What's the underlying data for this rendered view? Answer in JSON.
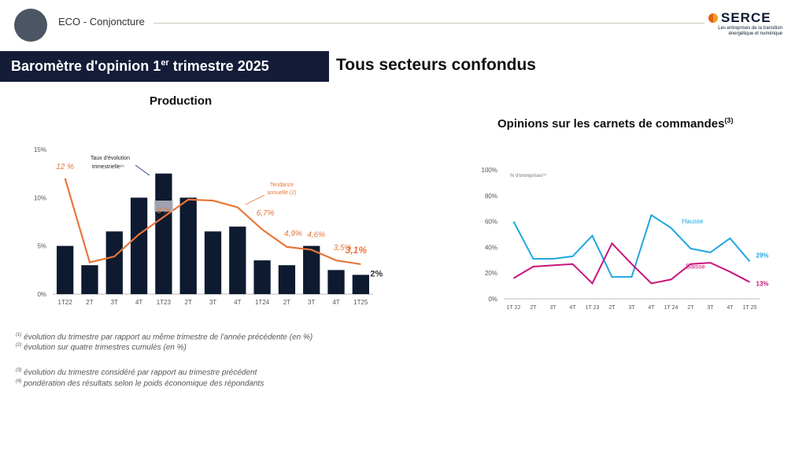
{
  "header": {
    "section": "ECO - Conjoncture",
    "brand": {
      "name": "SERCE",
      "tagline_1": "Les entreprises de la transition",
      "tagline_2": "énergétique et numérique"
    }
  },
  "banner": {
    "title_prefix": "Baromètre d'opinion 1",
    "title_sup": "er",
    "title_suffix": " trimestre 2025"
  },
  "section_title": "Tous secteurs confondus",
  "colors": {
    "navy": "#0e1a30",
    "orange": "#e8763a",
    "hausse": "#1ea7e0",
    "baisse": "#c8137a",
    "banner": "#141c38"
  },
  "chart_data": [
    {
      "type": "bar",
      "title": "Production",
      "categories": [
        "1T22",
        "2T",
        "3T",
        "4T",
        "1T23",
        "2T",
        "3T",
        "4T",
        "1T24",
        "2T",
        "3T",
        "4T",
        "1T25"
      ],
      "ylim": [
        0,
        15
      ],
      "yticks": [
        "0%",
        "5%",
        "10%",
        "15%"
      ],
      "series": [
        {
          "name": "Taux d'évolution trimestrielle",
          "type": "bar",
          "color": "#0e1a30",
          "values": [
            5,
            3,
            6.5,
            10,
            12.5,
            10,
            6.5,
            7,
            3.5,
            3,
            5,
            2.5,
            2
          ]
        },
        {
          "name": "Tendance annuelle (2)",
          "type": "line",
          "color": "#e8763a",
          "values": [
            12,
            3.3,
            3.9,
            6.2,
            8,
            9.8,
            9.7,
            9,
            6.7,
            4.9,
            4.6,
            3.5,
            3.1
          ]
        }
      ],
      "annotations": {
        "bar_label": "Taux d'évolution trimestrielle",
        "bar_label_sup": "(1)",
        "line_label_1": "Tendance",
        "line_label_2": "annuelle (2)",
        "points": [
          "12 %",
          "8 %",
          "6,7%",
          "4,9%",
          "4,6%",
          "3,5%",
          "3,1%"
        ],
        "last_bar": "2%"
      }
    },
    {
      "type": "line",
      "title": "Opinions sur les carnets de commandes",
      "title_sup": "(3)",
      "ylabel": "% d'entreprises",
      "ylabel_sup": "(4)",
      "categories": [
        "1T 22",
        "2T",
        "3T",
        "4T",
        "1T 23",
        "2T",
        "3T",
        "4T",
        "1T 24",
        "2T",
        "3T",
        "4T",
        "1T 25"
      ],
      "ylim": [
        0,
        100
      ],
      "yticks": [
        "0%",
        "20%",
        "40%",
        "60%",
        "80%",
        "100%"
      ],
      "series": [
        {
          "name": "Hausse",
          "color": "#1ea7e0",
          "values": [
            60,
            31,
            31,
            33,
            49,
            17,
            17,
            65,
            55,
            39,
            36,
            47,
            29
          ]
        },
        {
          "name": "Baisse",
          "color": "#c8137a",
          "values": [
            16,
            25,
            26,
            27,
            12,
            43,
            27,
            12,
            15,
            27,
            28,
            21,
            13
          ]
        }
      ],
      "end_labels": [
        "29%",
        "13%"
      ]
    }
  ],
  "notes": [
    {
      "sup": "(1)",
      "text": " évolution du trimestre par rapport au même trimestre de l'année précédente (en %)"
    },
    {
      "sup": "(2)",
      "text": " évolution sur quatre trimestres cumulés (en %)"
    },
    {
      "sup": "(3)",
      "text": " évolution du trimestre considéré par rapport au trimestre précédent"
    },
    {
      "sup": "(4)",
      "text": " pondération des résultats selon le poids économique des répondants"
    }
  ]
}
